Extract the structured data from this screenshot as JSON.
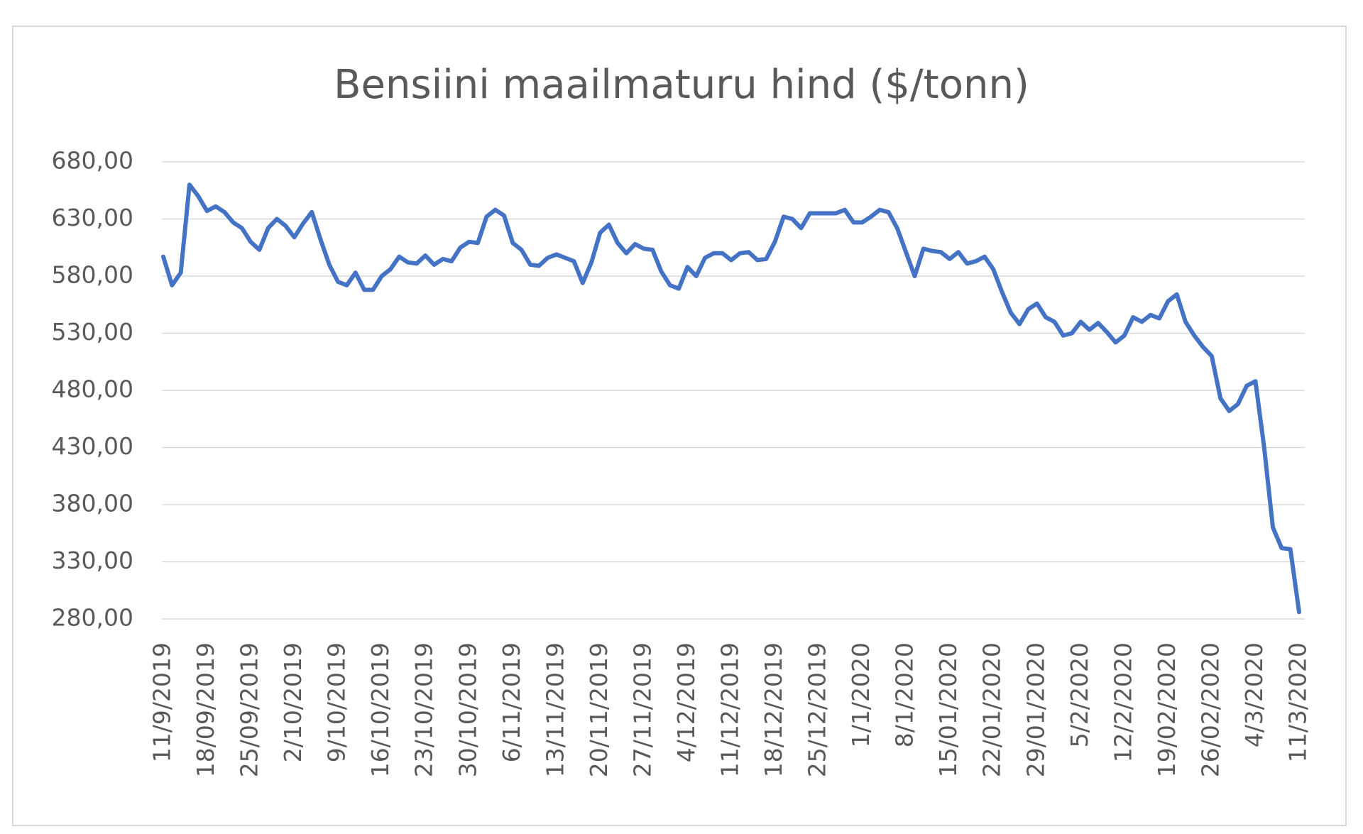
{
  "chart_data": {
    "type": "line",
    "title": "Bensiini maailmaturu hind ($/tonn)",
    "categories": [
      "11/9/2019",
      null,
      null,
      null,
      null,
      "18/09/2019",
      null,
      null,
      null,
      null,
      "25/09/2019",
      null,
      null,
      null,
      null,
      "2/10/2019",
      null,
      null,
      null,
      null,
      "9/10/2019",
      null,
      null,
      null,
      null,
      "16/10/2019",
      null,
      null,
      null,
      null,
      "23/10/2019",
      null,
      null,
      null,
      null,
      "30/10/2019",
      null,
      null,
      null,
      null,
      "6/11/2019",
      null,
      null,
      null,
      null,
      "13/11/2019",
      null,
      null,
      null,
      null,
      "20/11/2019",
      null,
      null,
      null,
      null,
      "27/11/2019",
      null,
      null,
      null,
      null,
      "4/12/2019",
      null,
      null,
      null,
      null,
      "11/12/2019",
      null,
      null,
      null,
      null,
      "18/12/2019",
      null,
      null,
      null,
      null,
      "25/12/2019",
      null,
      null,
      null,
      null,
      "1/1/2020",
      null,
      null,
      null,
      null,
      "8/1/2020",
      null,
      null,
      null,
      null,
      "15/01/2020",
      null,
      null,
      null,
      null,
      "22/01/2020",
      null,
      null,
      null,
      null,
      "29/01/2020",
      null,
      null,
      null,
      null,
      "5/2/2020",
      null,
      null,
      null,
      null,
      "12/2/2020",
      null,
      null,
      null,
      null,
      "19/02/2020",
      null,
      null,
      null,
      null,
      "26/02/2020",
      null,
      null,
      null,
      null,
      "4/3/2020",
      null,
      null,
      null,
      null,
      "11/3/2020"
    ],
    "values": [
      597,
      572,
      583,
      660,
      650,
      637,
      641,
      636,
      627,
      622,
      610,
      603,
      622,
      630,
      624,
      614,
      626,
      636,
      612,
      590,
      575,
      572,
      583,
      568,
      568,
      580,
      586,
      597,
      592,
      591,
      598,
      590,
      595,
      593,
      605,
      610,
      609,
      632,
      638,
      633,
      609,
      603,
      590,
      589,
      596,
      599,
      596,
      593,
      574,
      592,
      618,
      625,
      609,
      600,
      608,
      604,
      603,
      584,
      572,
      569,
      588,
      580,
      596,
      600,
      600,
      594,
      600,
      601,
      594,
      595,
      610,
      632,
      630,
      622,
      635,
      635,
      635,
      635,
      638,
      627,
      627,
      632,
      638,
      636,
      622,
      601,
      580,
      604,
      602,
      601,
      595,
      601,
      591,
      593,
      597,
      586,
      566,
      548,
      538,
      551,
      556,
      544,
      540,
      528,
      530,
      540,
      533,
      539,
      531,
      522,
      528,
      544,
      540,
      546,
      543,
      558,
      564,
      540,
      528,
      518,
      510,
      473,
      462,
      468,
      484,
      488,
      430,
      360,
      342,
      341,
      286
    ],
    "color": "#4472c4",
    "ylim": [
      280,
      680
    ],
    "yticks": [
      {
        "value": 280,
        "label": "280,00"
      },
      {
        "value": 330,
        "label": "330,00"
      },
      {
        "value": 380,
        "label": "380,00"
      },
      {
        "value": 430,
        "label": "430,00"
      },
      {
        "value": 480,
        "label": "480,00"
      },
      {
        "value": 530,
        "label": "530,00"
      },
      {
        "value": 580,
        "label": "580,00"
      },
      {
        "value": 630,
        "label": "630,00"
      },
      {
        "value": 680,
        "label": "680,00"
      }
    ],
    "grid": true
  }
}
